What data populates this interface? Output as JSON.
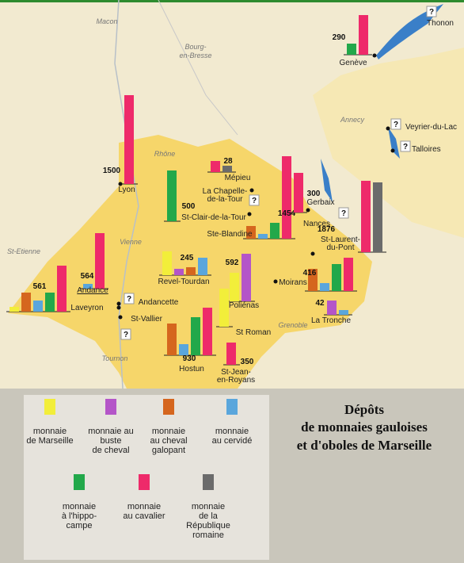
{
  "title": [
    "Dépôts",
    "de monnaies gauloises",
    "et d'oboles de Marseille"
  ],
  "legend": [
    {
      "label": [
        "monnaie",
        "de Marseille"
      ],
      "color": "#f2ee3a"
    },
    {
      "label": [
        "monnaie au",
        "buste",
        "de cheval"
      ],
      "color": "#b455c8"
    },
    {
      "label": [
        "monnaie",
        "au cheval",
        "galopant"
      ],
      "color": "#d5661e"
    },
    {
      "label": [
        "monnaie",
        "au cervidé"
      ],
      "color": "#5aa6dc"
    },
    {
      "label": [
        "monnaie",
        "à l'hippo-",
        "campe"
      ],
      "color": "#22a84a"
    },
    {
      "label": [
        "monnaie",
        "au cavalier"
      ],
      "color": "#ee2a6a"
    },
    {
      "label": [
        "monnaie",
        "de la",
        "République",
        "romaine"
      ],
      "color": "#6b6b6b"
    }
  ],
  "map_labels": [
    "Macon",
    "Bourg-",
    "en-Bresse",
    "Rhône",
    "Vienne",
    "St-Etienne",
    "Tournon",
    "Annecy",
    "Grenoble"
  ],
  "sites": [
    {
      "name": [
        "Genève"
      ],
      "total": 290,
      "bars": [
        {
          "coin": 4,
          "value": 14
        },
        {
          "coin": 5,
          "value": 50
        }
      ]
    },
    {
      "name": [
        "Thonon"
      ],
      "unknown": "?"
    },
    {
      "name": [
        "Veyrier-du-Lac"
      ],
      "unknown": "?"
    },
    {
      "name": [
        "Talloires"
      ],
      "unknown": "?"
    },
    {
      "name": [
        "Lyon"
      ],
      "total": 1500,
      "bars": [
        {
          "coin": 5,
          "value": 112
        }
      ]
    },
    {
      "name": [
        "Mépieu"
      ],
      "total": 28,
      "bars": [
        {
          "coin": 5,
          "value": 14
        },
        {
          "coin": 6,
          "value": 8
        }
      ]
    },
    {
      "name": [
        "La Chapelle-",
        "de-la-Tour"
      ],
      "unknown": "?"
    },
    {
      "name": [
        "St-Clair-de-la-Tour"
      ],
      "total": 500,
      "bars": [
        {
          "coin": 4,
          "value": 64
        }
      ]
    },
    {
      "name": [
        "Ste-Blandine"
      ],
      "total": 1454,
      "bars": [
        {
          "coin": 2,
          "value": 16
        },
        {
          "coin": 3,
          "value": 6
        },
        {
          "coin": 4,
          "value": 20
        },
        {
          "coin": 5,
          "value": 104
        }
      ]
    },
    {
      "name": [
        "Gerbaix"
      ],
      "total": 300,
      "bars": [
        {
          "coin": 5,
          "value": 50
        }
      ]
    },
    {
      "name": [
        "Nances"
      ],
      "unknown": "?"
    },
    {
      "name": [
        "St-Laurent-",
        "du-Pont"
      ],
      "total": 1876,
      "bars": [
        {
          "coin": 5,
          "value": 90
        },
        {
          "coin": 6,
          "value": 88
        }
      ]
    },
    {
      "name": [
        "Revel-Tourdan"
      ],
      "total": 245,
      "bars": [
        {
          "coin": 0,
          "value": 30
        },
        {
          "coin": 1,
          "value": 8
        },
        {
          "coin": 2,
          "value": 10
        },
        {
          "coin": 3,
          "value": 22
        }
      ]
    },
    {
      "name": [
        "Poliénas"
      ],
      "total": 592,
      "bars": [
        {
          "coin": 0,
          "value": 36
        },
        {
          "coin": 1,
          "value": 60
        }
      ]
    },
    {
      "name": [
        "Moirans"
      ],
      "total": 416,
      "bars": [
        {
          "coin": 2,
          "value": 28
        },
        {
          "coin": 3,
          "value": 10
        },
        {
          "coin": 4,
          "value": 34
        },
        {
          "coin": 5,
          "value": 42
        }
      ]
    },
    {
      "name": [
        "Andance"
      ],
      "total": 564,
      "bars": [
        {
          "coin": 3,
          "value": 6
        },
        {
          "coin": 5,
          "value": 70
        }
      ]
    },
    {
      "name": [
        "Laveyron"
      ],
      "total": 561,
      "bars": [
        {
          "coin": 0,
          "value": 6
        },
        {
          "coin": 2,
          "value": 24
        },
        {
          "coin": 3,
          "value": 14
        },
        {
          "coin": 4,
          "value": 24
        },
        {
          "coin": 5,
          "value": 58
        }
      ]
    },
    {
      "name": [
        "Andancette"
      ],
      "unknown": "?"
    },
    {
      "name": [
        "St-Vallier"
      ],
      "unknown": "?"
    },
    {
      "name": [
        "La Tronche"
      ],
      "total": 42,
      "bars": [
        {
          "coin": 1,
          "value": 18
        },
        {
          "coin": 3,
          "value": 6
        }
      ]
    },
    {
      "name": [
        "Hostun"
      ],
      "total": 930,
      "bars": [
        {
          "coin": 2,
          "value": 40
        },
        {
          "coin": 3,
          "value": 14
        },
        {
          "coin": 4,
          "value": 48
        },
        {
          "coin": 5,
          "value": 60
        }
      ]
    },
    {
      "name": [
        "St Roman"
      ],
      "bars": [
        {
          "coin": 0,
          "value": 48
        }
      ]
    },
    {
      "name": [
        "St-Jean-",
        "en-Royans"
      ],
      "total": 350,
      "bars": [
        {
          "coin": 5,
          "value": 28
        }
      ]
    }
  ]
}
